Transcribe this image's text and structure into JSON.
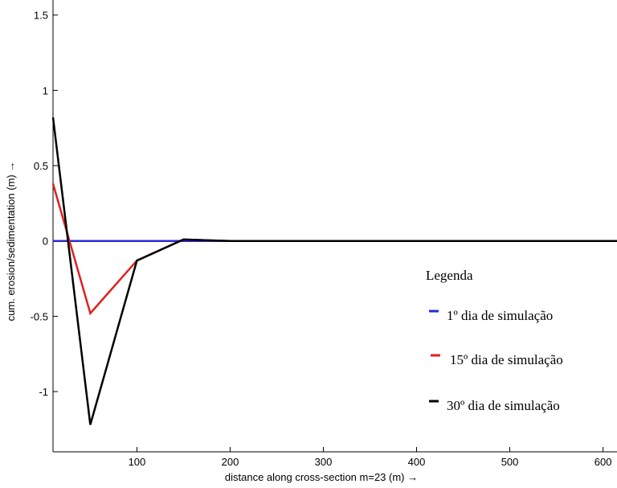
{
  "chart_data": {
    "type": "line",
    "xlabel": "distance along cross-section m=23 (m) →",
    "ylabel": "cum. erosion/sedimentation (m) →",
    "xlim": [
      10,
      615
    ],
    "ylim": [
      -1.4,
      1.6
    ],
    "xticks": [
      100,
      200,
      300,
      400,
      500,
      600
    ],
    "yticks": [
      1.5,
      1,
      0.5,
      0,
      -0.5,
      -1
    ],
    "xtick_labels": [
      "100",
      "200",
      "300",
      "400",
      "500",
      "600"
    ],
    "ytick_labels": [
      "1.5",
      "1",
      "0.5",
      "0",
      "-0.5",
      "-1"
    ],
    "grid": false,
    "legend": {
      "title": "Legenda",
      "position": "right"
    },
    "series": [
      {
        "name": "1º dia de simulação",
        "color": "#2a2ad6",
        "x": [
          10,
          50,
          100,
          150,
          200,
          615
        ],
        "y": [
          0,
          0,
          0,
          0,
          0,
          0
        ]
      },
      {
        "name": "15º dia de simulação",
        "color": "#e02020",
        "x": [
          10,
          50,
          100,
          150,
          200,
          615
        ],
        "y": [
          0.38,
          -0.48,
          -0.13,
          0.01,
          0,
          0
        ]
      },
      {
        "name": "30º dia de simulação",
        "color": "#000000",
        "x": [
          10,
          50,
          100,
          150,
          200,
          615
        ],
        "y": [
          0.82,
          -1.22,
          -0.13,
          0.01,
          0,
          0
        ]
      }
    ]
  }
}
